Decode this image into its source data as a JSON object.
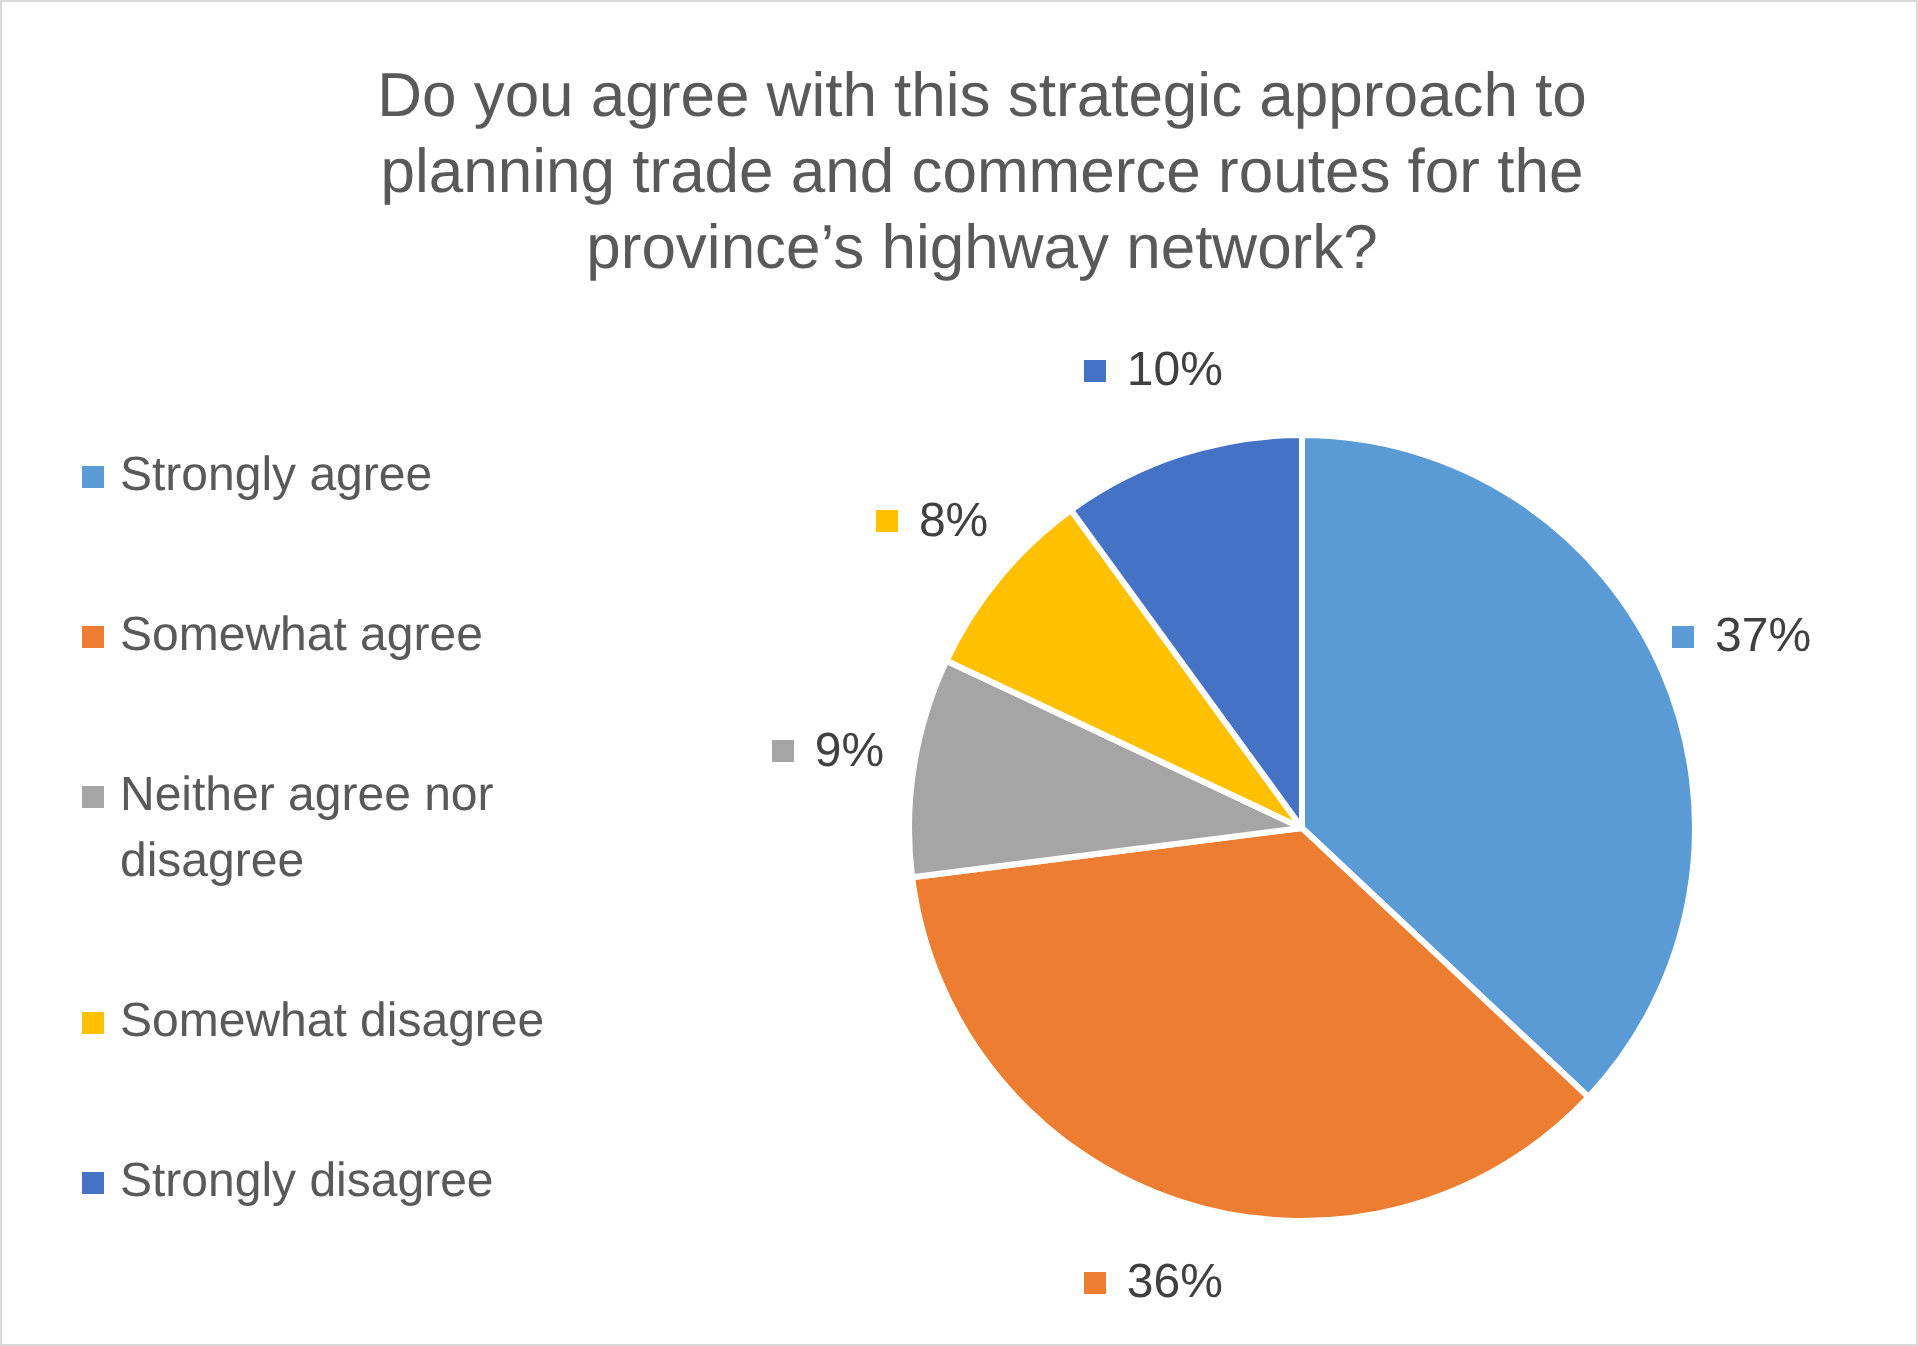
{
  "chart_data": {
    "type": "pie",
    "title": "Do you agree with this strategic approach to planning trade and commerce routes for the province’s highway network?",
    "categories": [
      "Strongly agree",
      "Somewhat agree",
      "Neither agree nor disagree",
      "Somewhat disagree",
      "Strongly disagree"
    ],
    "values": [
      37,
      36,
      9,
      8,
      10
    ],
    "colors": [
      "#5b9bd5",
      "#ed7d31",
      "#a5a5a5",
      "#ffc000",
      "#4472c4"
    ],
    "value_labels": [
      "37%",
      "36%",
      "9%",
      "8%",
      "10%"
    ],
    "legend": "left"
  }
}
